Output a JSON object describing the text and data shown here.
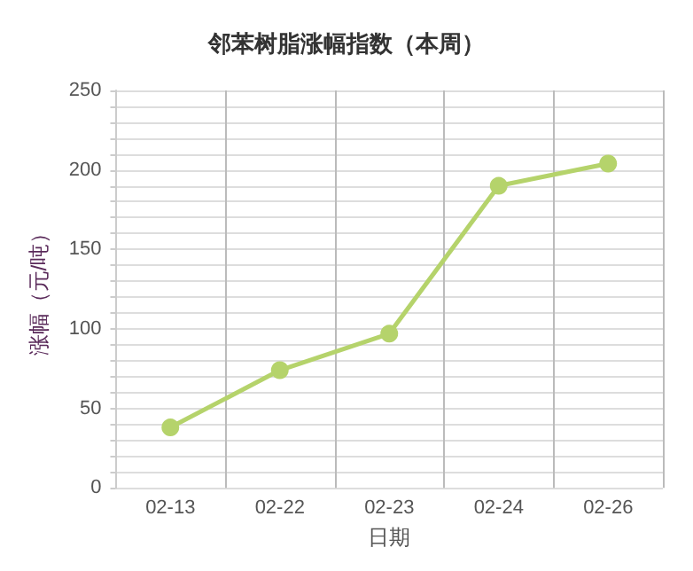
{
  "chart_data": {
    "type": "line",
    "title": "邻苯树脂涨幅指数（本周）",
    "xlabel": "日期",
    "ylabel": "涨幅（元/吨）",
    "categories": [
      "02-13",
      "02-22",
      "02-23",
      "02-24",
      "02-26"
    ],
    "series": [
      {
        "color": "#b5d36b",
        "values": [
          38,
          74,
          97,
          190,
          204
        ]
      }
    ],
    "ylim": [
      0,
      250
    ],
    "yticks": [
      0,
      {
        "value": 10,
        "label": null
      },
      {
        "value": 20,
        "label": null
      },
      {
        "value": 30,
        "label": null
      },
      {
        "value": 40,
        "label": null
      },
      50,
      {
        "value": 60,
        "label": null
      },
      {
        "value": 70,
        "label": null
      },
      {
        "value": 80,
        "label": null
      },
      {
        "value": 90,
        "label": null
      },
      100,
      {
        "value": 110,
        "label": null
      },
      {
        "value": 120,
        "label": null
      },
      {
        "value": 130,
        "label": null
      },
      {
        "value": 140,
        "label": null
      },
      150,
      {
        "value": 160,
        "label": null
      },
      {
        "value": 170,
        "label": null
      },
      {
        "value": 180,
        "label": null
      },
      {
        "value": 190,
        "label": null
      },
      200,
      {
        "value": 210,
        "label": null
      },
      {
        "value": 220,
        "label": null
      },
      {
        "value": 230,
        "label": null
      },
      {
        "value": 240,
        "label": null
      },
      250
    ],
    "grid": true,
    "marker": "circle",
    "line_style": "solid"
  }
}
